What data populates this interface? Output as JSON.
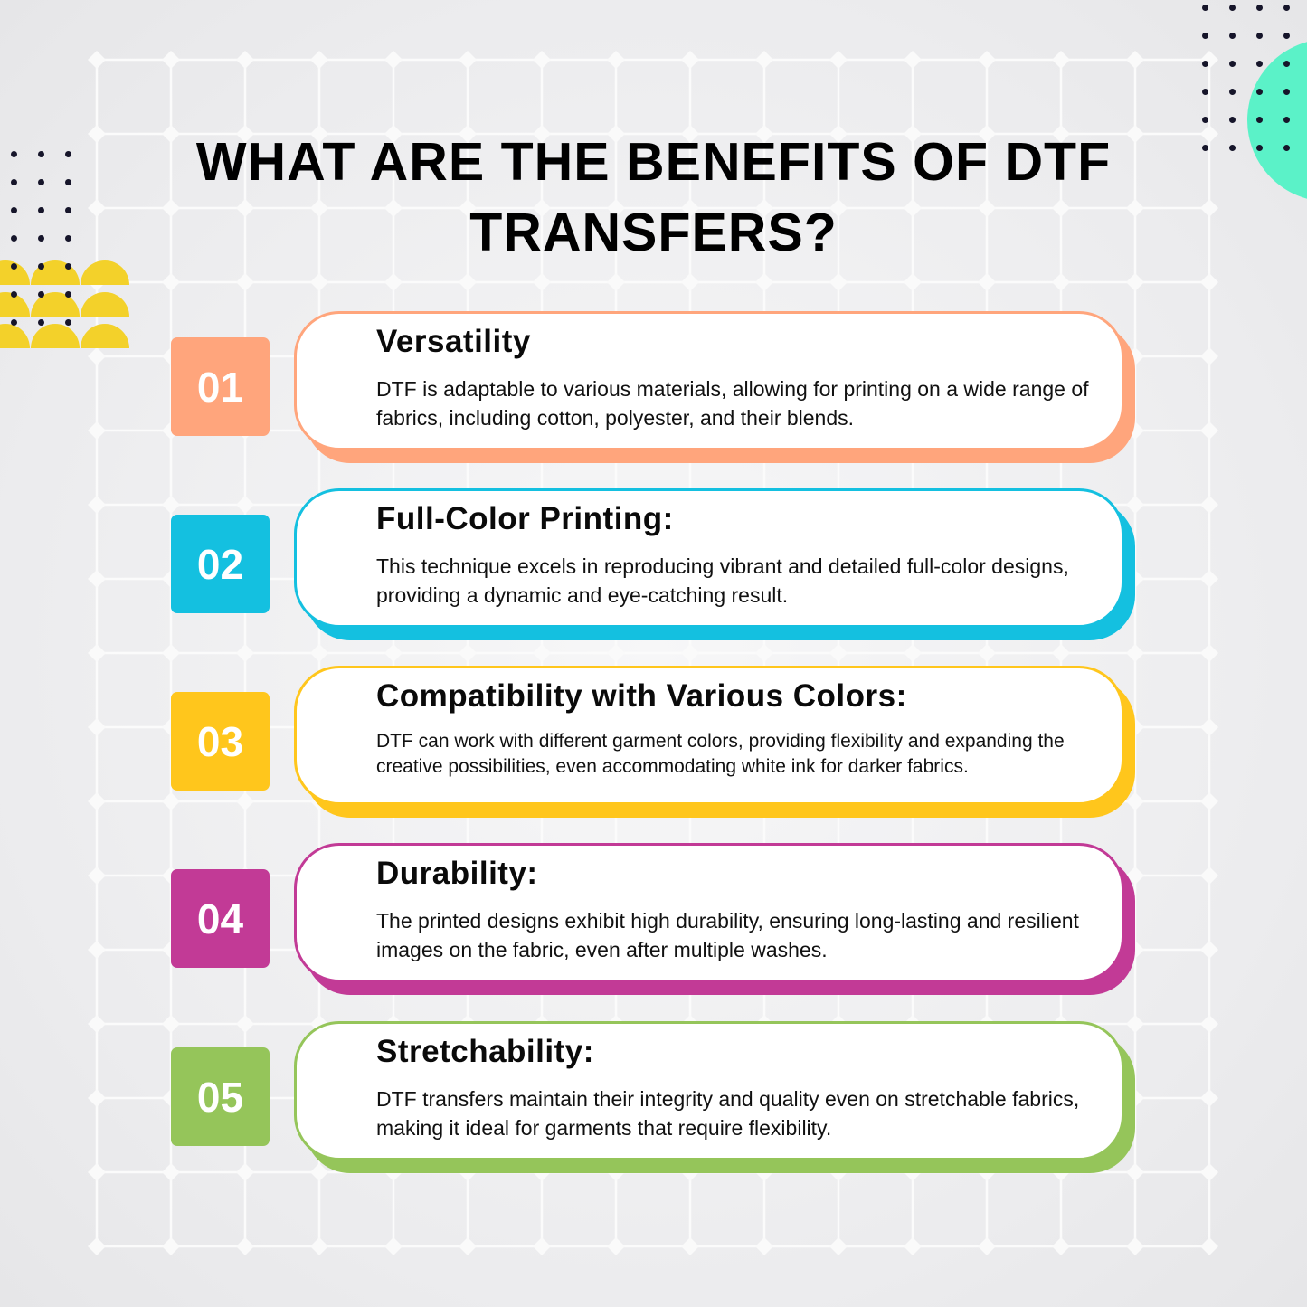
{
  "title": "WHAT ARE THE BENEFITS OF DTF TRANSFERS?",
  "colors": {
    "orange": "#ffa57c",
    "cyan": "#14c0e0",
    "yellow": "#ffc61c",
    "magenta": "#c23a96",
    "green": "#95c55a",
    "teal": "#5bf2c8",
    "decor_yellow": "#f3d12a"
  },
  "items": [
    {
      "number": "01",
      "heading": "Versatility",
      "text": "DTF is adaptable to various materials, allowing for printing on a wide range of fabrics, including cotton, polyester, and their blends.",
      "color": "#ffa57c"
    },
    {
      "number": "02",
      "heading": "Full-Color Printing:",
      "text": "This technique excels in reproducing vibrant and detailed full-color designs, providing a dynamic and eye-catching result.",
      "color": "#14c0e0"
    },
    {
      "number": "03",
      "heading": "Compatibility with Various Colors:",
      "text": "DTF can work with different garment colors, providing flexibility and expanding the creative possibilities, even accommodating white ink for darker fabrics.",
      "color": "#ffc61c"
    },
    {
      "number": "04",
      "heading": "Durability:",
      "text": "The printed designs exhibit high durability, ensuring long-lasting and resilient images on the fabric, even after multiple washes.",
      "color": "#c23a96"
    },
    {
      "number": "05",
      "heading": "Stretchability:",
      "text": "DTF transfers maintain their integrity and quality even on stretchable fabrics, making it ideal for garments that require flexibility.",
      "color": "#95c55a"
    }
  ]
}
